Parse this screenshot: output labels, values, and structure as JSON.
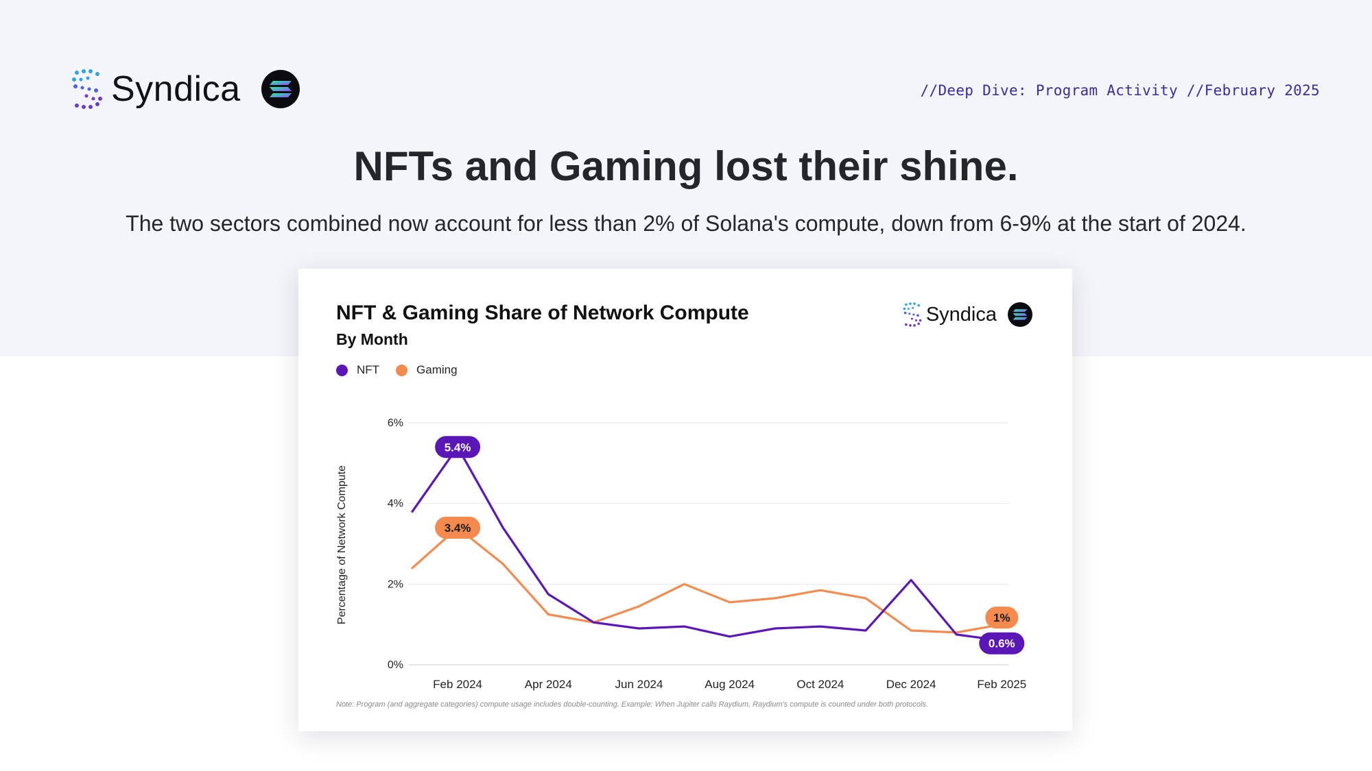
{
  "header": {
    "brand_name": "Syndica",
    "right_text": "//Deep Dive: Program Activity //February 2025"
  },
  "headline": "NFTs and Gaming lost their shine.",
  "subline": "The two sectors combined now account for less than 2% of Solana's compute, down from 6-9% at the start of 2024.",
  "card": {
    "brand_name": "Syndica",
    "note": "Note: Program (and aggregate categories) compute usage includes double-counting. Example: When Jupiter calls Raydium, Raydium's compute is counted under both protocols."
  },
  "colors": {
    "nft": "#5b16b8",
    "gaming": "#f58a4e"
  },
  "chart_data": {
    "type": "line",
    "title": "NFT & Gaming Share of Network Compute",
    "subtitle": "By Month",
    "ylabel": "Percentage of Network Compute",
    "xlabel": "",
    "ylim": [
      0,
      6
    ],
    "yticks": [
      "0%",
      "2%",
      "4%",
      "6%"
    ],
    "x": [
      "Jan 2024",
      "Feb 2024",
      "Mar 2024",
      "Apr 2024",
      "May 2024",
      "Jun 2024",
      "Jul 2024",
      "Aug 2024",
      "Sep 2024",
      "Oct 2024",
      "Nov 2024",
      "Dec 2024",
      "Jan 2025",
      "Feb 2025"
    ],
    "xtick_labels": [
      "Feb 2024",
      "Apr 2024",
      "Jun 2024",
      "Aug 2024",
      "Oct 2024",
      "Dec 2024",
      "Feb 2025"
    ],
    "grid": true,
    "legend_position": "top-left",
    "series": [
      {
        "name": "NFT",
        "values": [
          3.8,
          5.4,
          3.4,
          1.75,
          1.05,
          0.9,
          0.95,
          0.7,
          0.9,
          0.95,
          0.85,
          2.1,
          0.75,
          0.6
        ]
      },
      {
        "name": "Gaming",
        "values": [
          2.4,
          3.4,
          2.5,
          1.25,
          1.05,
          1.45,
          2.0,
          1.55,
          1.65,
          1.85,
          1.65,
          0.85,
          0.8,
          1.0
        ]
      }
    ],
    "annotations": [
      {
        "series": "NFT",
        "x": "Feb 2024",
        "label": "5.4%"
      },
      {
        "series": "Gaming",
        "x": "Feb 2024",
        "label": "3.4%"
      },
      {
        "series": "Gaming",
        "x": "Feb 2025",
        "label": "1%"
      },
      {
        "series": "NFT",
        "x": "Feb 2025",
        "label": "0.6%"
      }
    ]
  }
}
